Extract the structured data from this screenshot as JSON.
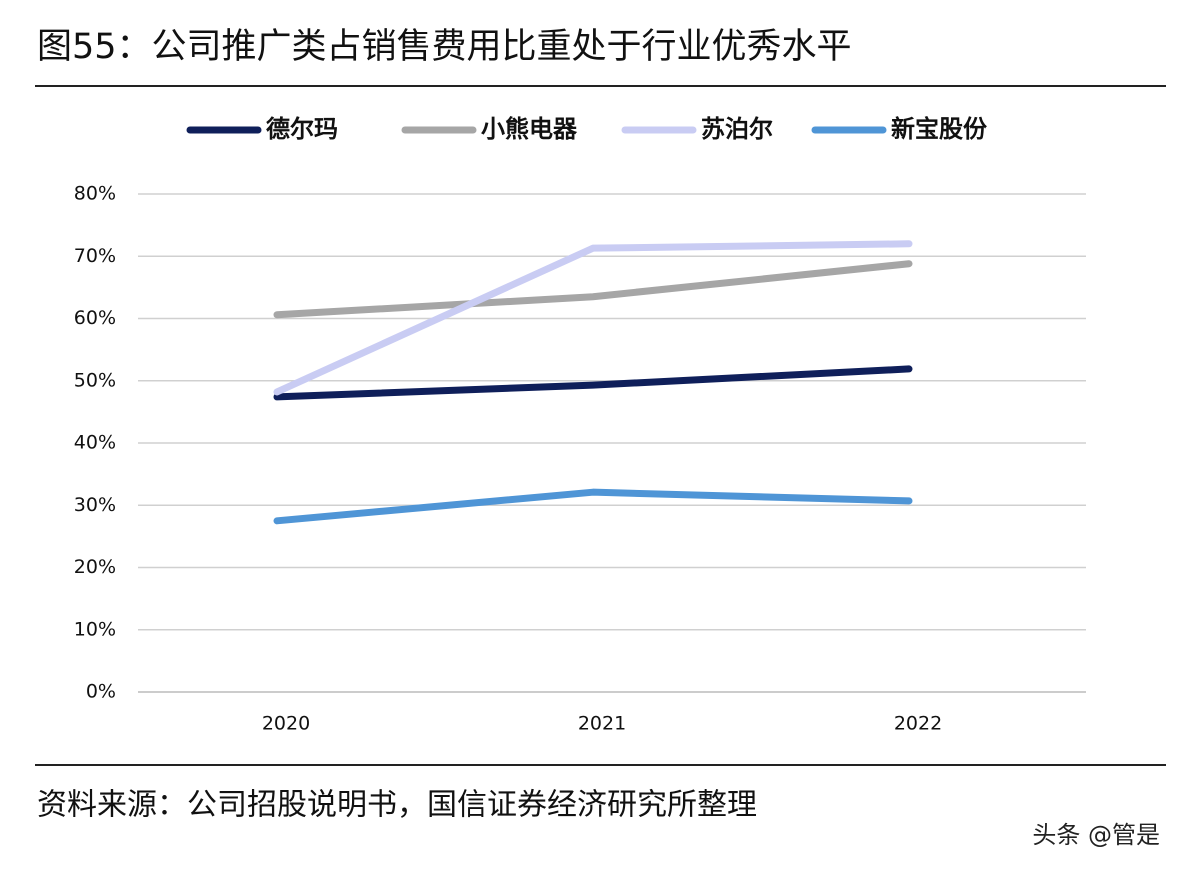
{
  "chart_data": {
    "type": "line",
    "title": "图55：公司推广类占销售费用比重处于行业优秀水平",
    "categories": [
      "2020",
      "2021",
      "2022"
    ],
    "series": [
      {
        "name": "德尔玛",
        "color": "#0f1f5a",
        "values": [
          47.4,
          49.3,
          51.9
        ]
      },
      {
        "name": "小熊电器",
        "color": "#a6a6a6",
        "values": [
          60.6,
          63.5,
          68.8
        ]
      },
      {
        "name": "苏泊尔",
        "color": "#c9ccf3",
        "values": [
          48.2,
          71.3,
          72.0
        ]
      },
      {
        "name": "新宝股份",
        "color": "#4f95d6",
        "values": [
          27.5,
          32.1,
          30.7
        ]
      }
    ],
    "ylim": [
      0,
      80
    ],
    "yticks": [
      {
        "value": 0,
        "label": "0%"
      },
      {
        "value": 10,
        "label": "10%"
      },
      {
        "value": 20,
        "label": "20%"
      },
      {
        "value": 30,
        "label": "30%"
      },
      {
        "value": 40,
        "label": "40%"
      },
      {
        "value": 50,
        "label": "50%"
      },
      {
        "value": 60,
        "label": "60%"
      },
      {
        "value": 70,
        "label": "70%"
      },
      {
        "value": 80,
        "label": "80%"
      }
    ],
    "grid": true,
    "legend": "top",
    "source": "资料来源：公司招股说明书，国信证券经济研究所整理",
    "watermark": "头条 @管是"
  }
}
